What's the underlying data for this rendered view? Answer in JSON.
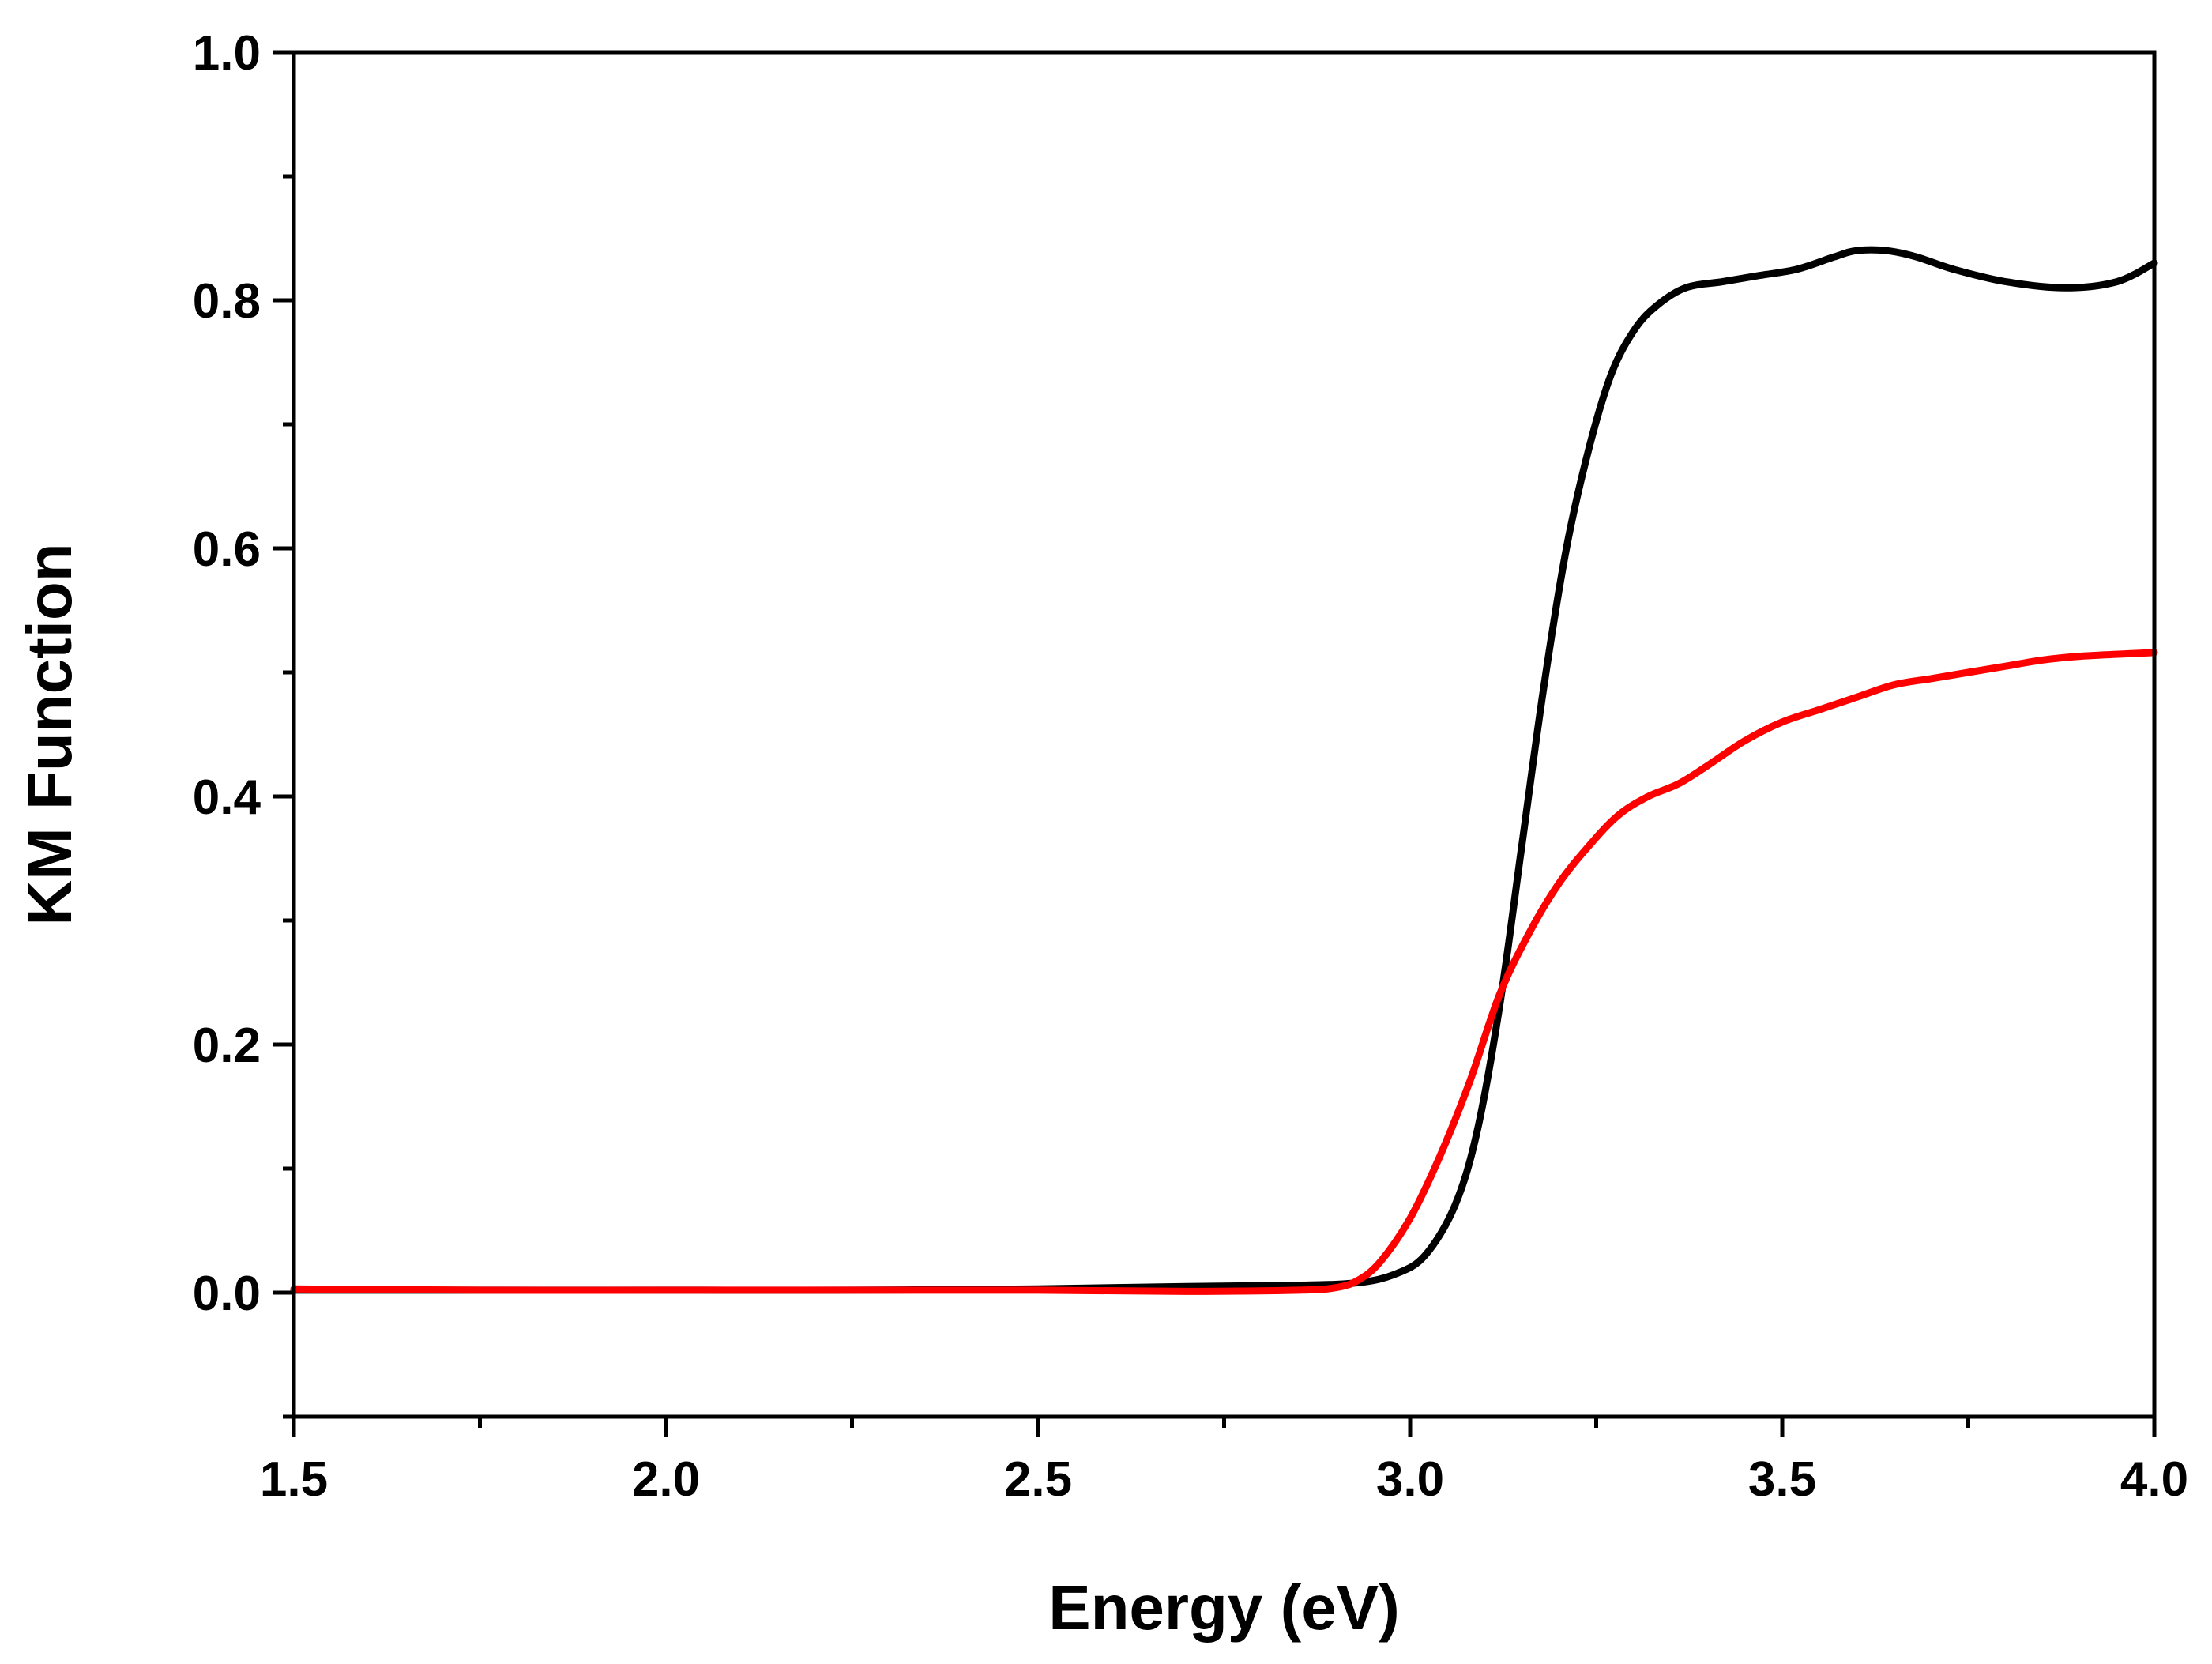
{
  "chart_data": {
    "type": "line",
    "title": "",
    "xlabel": "Energy (eV)",
    "ylabel": "KM Function",
    "xlim": [
      1.5,
      4.0
    ],
    "ylim": [
      -0.1,
      1.0
    ],
    "xticks": [
      "1.5",
      "2.0",
      "2.5",
      "3.0",
      "3.5",
      "4.0"
    ],
    "yticks": [
      "0.0",
      "0.2",
      "0.4",
      "0.6",
      "0.8",
      "1.0"
    ],
    "grid": false,
    "legend": "none",
    "series": [
      {
        "name": "black curve",
        "color": "#000000",
        "x": [
          1.5,
          1.75,
          2.0,
          2.25,
          2.5,
          2.7,
          2.85,
          2.93,
          2.98,
          3.02,
          3.06,
          3.09,
          3.12,
          3.15,
          3.18,
          3.21,
          3.24,
          3.27,
          3.3,
          3.33,
          3.37,
          3.42,
          3.47,
          3.52,
          3.57,
          3.6,
          3.64,
          3.68,
          3.73,
          3.8,
          3.88,
          3.95,
          4.0
        ],
        "y": [
          0.002,
          0.002,
          0.002,
          0.002,
          0.003,
          0.005,
          0.006,
          0.008,
          0.015,
          0.03,
          0.07,
          0.13,
          0.23,
          0.36,
          0.49,
          0.6,
          0.68,
          0.74,
          0.775,
          0.795,
          0.81,
          0.815,
          0.82,
          0.825,
          0.835,
          0.84,
          0.84,
          0.835,
          0.825,
          0.815,
          0.81,
          0.815,
          0.83
        ]
      },
      {
        "name": "red curve",
        "color": "#ff0000",
        "x": [
          1.5,
          1.75,
          2.0,
          2.25,
          2.5,
          2.7,
          2.85,
          2.9,
          2.93,
          2.96,
          3.0,
          3.04,
          3.08,
          3.12,
          3.16,
          3.2,
          3.24,
          3.28,
          3.32,
          3.36,
          3.4,
          3.45,
          3.5,
          3.55,
          3.6,
          3.65,
          3.7,
          3.75,
          3.8,
          3.85,
          3.9,
          4.0
        ],
        "y": [
          0.003,
          0.002,
          0.002,
          0.002,
          0.002,
          0.001,
          0.002,
          0.004,
          0.01,
          0.025,
          0.06,
          0.11,
          0.17,
          0.24,
          0.29,
          0.33,
          0.36,
          0.385,
          0.4,
          0.41,
          0.425,
          0.445,
          0.46,
          0.47,
          0.48,
          0.49,
          0.495,
          0.5,
          0.505,
          0.51,
          0.513,
          0.516
        ]
      }
    ]
  }
}
